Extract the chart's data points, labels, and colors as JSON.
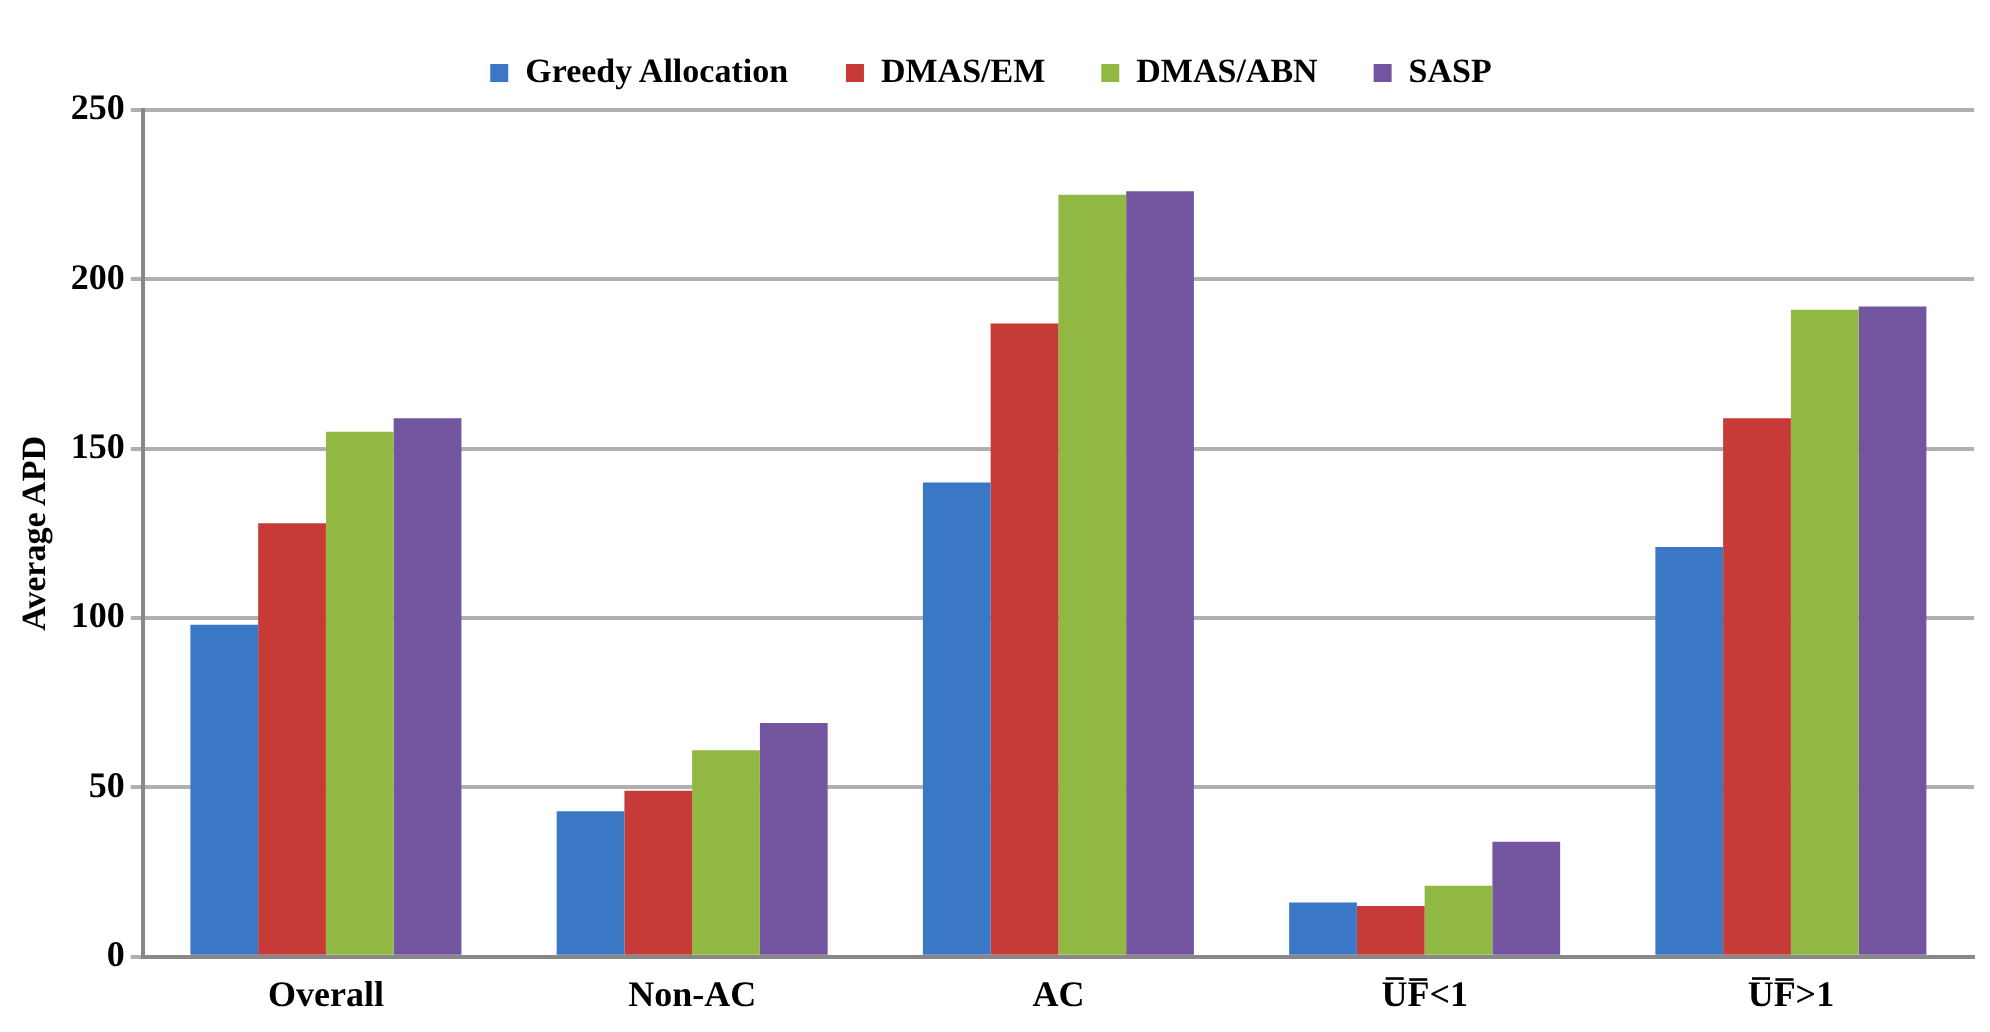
{
  "chart_data": {
    "type": "bar",
    "ylabel": "Average APD",
    "categories": [
      "Overall",
      "Non-AC",
      "AC",
      "U̅F̅<1",
      "U̅F̅>1"
    ],
    "series": [
      {
        "name": "Greedy Allocation",
        "color": "#3a78c6",
        "values": [
          98,
          43,
          140,
          16,
          121
        ]
      },
      {
        "name": "DMAS/EM",
        "color": "#c63b38",
        "values": [
          128,
          49,
          187,
          15,
          159
        ]
      },
      {
        "name": "DMAS/ABN",
        "color": "#90b843",
        "values": [
          155,
          61,
          225,
          21,
          191
        ]
      },
      {
        "name": "SASP",
        "color": "#73549e",
        "values": [
          159,
          69,
          226,
          34,
          192
        ]
      }
    ],
    "ylim": [
      0,
      250
    ],
    "yticks": [
      0,
      50,
      100,
      150,
      200,
      250
    ],
    "grid": "y",
    "legend": "top"
  }
}
